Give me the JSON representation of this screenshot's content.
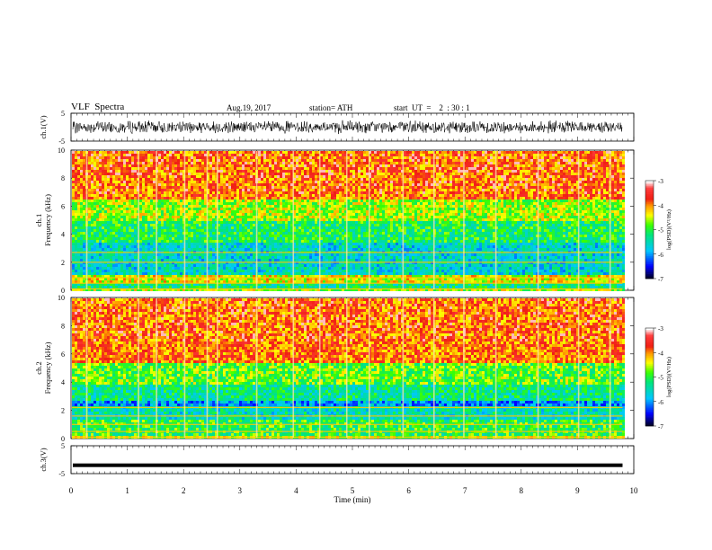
{
  "header": {
    "title": "VLF  Spectra",
    "date": "Aug.19, 2017",
    "station": "station= ATH",
    "start": "start  UT  =    2  : 30 : 1"
  },
  "chart_data": [
    {
      "type": "line",
      "name": "ch1-waveform",
      "ylabel": "ch.1(V)",
      "ylim": [
        -5,
        5
      ],
      "ytick_labels": [
        "5",
        "-5"
      ],
      "xlim": [
        0,
        10
      ],
      "x_data_extent": [
        0,
        9.8
      ],
      "values": "dense noisy waveform spanning roughly -2.5 to 2.5 V across the full record"
    },
    {
      "type": "heatmap",
      "name": "ch1-spectrogram",
      "ylabel": "ch.1\nFrequency  (kHz)",
      "ylim": [
        0,
        10
      ],
      "ytick_labels": [
        "0",
        "2",
        "4",
        "6",
        "8",
        "10"
      ],
      "xlim": [
        0,
        10
      ],
      "x_data_extent": [
        0,
        9.8
      ],
      "colorbar": {
        "label": "log(PSD)(V²/Hz)",
        "range": [
          -7,
          -3
        ],
        "tick_labels": [
          "-3",
          "-4",
          "-5",
          "-6",
          "-7"
        ]
      },
      "bands_khz": [
        {
          "from": 0.0,
          "to": 0.2,
          "log_psd": -4.6
        },
        {
          "from": 0.2,
          "to": 0.6,
          "log_psd": -5.3
        },
        {
          "from": 0.6,
          "to": 1.2,
          "log_psd": -4.4
        },
        {
          "from": 1.2,
          "to": 3.5,
          "log_psd": -5.6
        },
        {
          "from": 3.5,
          "to": 5.0,
          "log_psd": -5.1
        },
        {
          "from": 5.0,
          "to": 6.5,
          "log_psd": -4.6
        },
        {
          "from": 6.5,
          "to": 10.0,
          "log_psd": -3.9
        }
      ],
      "bright_lines_khz": [
        0.1,
        0.5,
        0.9,
        2.0,
        2.7
      ],
      "impulsive_columns_min": [
        0.28,
        1.2,
        1.52,
        2.02,
        2.42,
        2.6,
        3.3,
        3.95,
        4.42,
        4.9,
        5.3,
        5.9,
        6.45,
        6.98,
        7.55,
        8.3,
        9.02,
        9.58
      ]
    },
    {
      "type": "heatmap",
      "name": "ch2-spectrogram",
      "ylabel": "ch.2\nFrequency  (kHz)",
      "ylim": [
        0,
        10
      ],
      "ytick_labels": [
        "0",
        "2",
        "4",
        "6",
        "8",
        "10"
      ],
      "xlim": [
        0,
        10
      ],
      "x_data_extent": [
        0,
        9.8
      ],
      "colorbar": {
        "label": "log(PSD)(V²/Hz)",
        "range": [
          -7,
          -3
        ],
        "tick_labels": [
          "-3",
          "-4",
          "-5",
          "-6",
          "-7"
        ]
      },
      "bands_khz": [
        {
          "from": 0.0,
          "to": 0.3,
          "log_psd": -4.5
        },
        {
          "from": 0.3,
          "to": 1.5,
          "log_psd": -5.0
        },
        {
          "from": 1.5,
          "to": 2.3,
          "log_psd": -5.5
        },
        {
          "from": 2.3,
          "to": 2.8,
          "log_psd": -6.0
        },
        {
          "from": 2.8,
          "to": 4.0,
          "log_psd": -5.3
        },
        {
          "from": 4.0,
          "to": 5.5,
          "log_psd": -4.8
        },
        {
          "from": 5.5,
          "to": 10.0,
          "log_psd": -3.9
        }
      ],
      "bright_lines_khz": [
        0.1,
        0.5,
        1.0,
        1.6,
        2.2
      ],
      "impulsive_columns_min": [
        0.28,
        1.2,
        1.52,
        2.02,
        2.42,
        2.6,
        3.3,
        3.95,
        4.42,
        4.9,
        5.3,
        5.9,
        6.45,
        6.98,
        7.55,
        8.3,
        9.02,
        9.58
      ]
    },
    {
      "type": "line",
      "name": "ch3-waveform",
      "ylabel": "ch.3(V)",
      "ylim": [
        -5,
        5
      ],
      "ytick_labels": [
        "5",
        "-5"
      ],
      "xlim": [
        0,
        10
      ],
      "x_data_extent": [
        0,
        9.8
      ],
      "values": "flat thick trace near -2 V across the full record",
      "xlabel": "Time  (min)",
      "xtick_labels": [
        "0",
        "1",
        "2",
        "3",
        "4",
        "5",
        "6",
        "7",
        "8",
        "9",
        "10"
      ]
    }
  ]
}
